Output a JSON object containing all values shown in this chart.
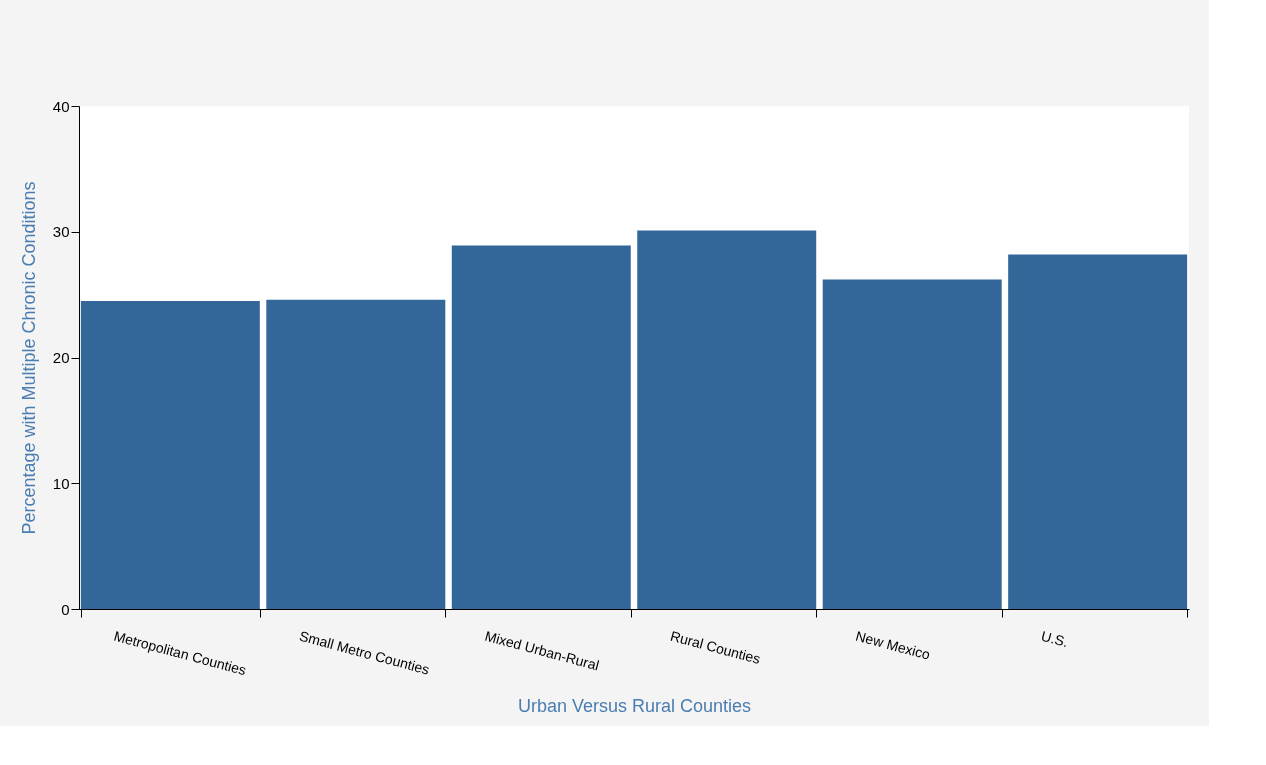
{
  "chart_data": {
    "type": "bar",
    "xlabel": "Urban Versus Rural Counties",
    "ylabel": "Percentage with Multiple Chronic Conditions",
    "categories": [
      "Metropolitan Counties",
      "Small Metro Counties",
      "Mixed Urban-Rural",
      "Rural Counties",
      "New Mexico",
      "U.S."
    ],
    "values": [
      24.5,
      24.6,
      28.9,
      30.1,
      26.2,
      28.2
    ],
    "color": "#336699",
    "ylim": [
      0,
      40
    ],
    "yticks": [
      0,
      10,
      20,
      30,
      40
    ],
    "grid": false
  }
}
